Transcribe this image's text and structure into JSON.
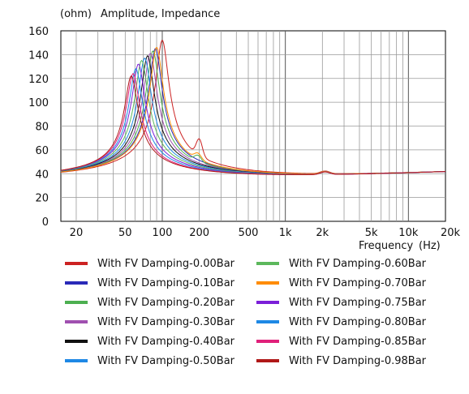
{
  "chart_data": {
    "type": "line",
    "ylabel": "(ohm)",
    "title": "Amplitude, Impedance",
    "xlabel": "Frequency",
    "xunit": "(Hz)",
    "xscale": "log",
    "xlim": [
      15,
      20000
    ],
    "ylim": [
      0,
      160
    ],
    "grid": true,
    "legend_placement": "bottom",
    "y_ticks": [
      "0",
      "20",
      "40",
      "60",
      "80",
      "100",
      "120",
      "140",
      "160"
    ],
    "x_tick_values": [
      20,
      50,
      100,
      200,
      500,
      1000,
      2000,
      5000,
      10000,
      20000
    ],
    "x_tick_labels": [
      "20",
      "50",
      "100",
      "200",
      "500",
      "1k",
      "2k",
      "5k",
      "10k",
      "20k"
    ],
    "series": [
      {
        "name": "With FV Damping-0.00Bar",
        "color": "#cc2222",
        "fs": 100,
        "peak": 152
      },
      {
        "name": "With FV Damping-0.10Bar",
        "color": "#2a2ab8",
        "fs": 88,
        "peak": 145
      },
      {
        "name": "With FV Damping-0.20Bar",
        "color": "#4caf50",
        "fs": 84,
        "peak": 143
      },
      {
        "name": "With FV Damping-0.30Bar",
        "color": "#a050b0",
        "fs": 80,
        "peak": 141
      },
      {
        "name": "With FV Damping-0.40Bar",
        "color": "#111111",
        "fs": 76,
        "peak": 139
      },
      {
        "name": "With FV Damping-0.50Bar",
        "color": "#1e88e5",
        "fs": 72,
        "peak": 137
      },
      {
        "name": "With FV Damping-0.60Bar",
        "color": "#5cb85c",
        "fs": 68,
        "peak": 135
      },
      {
        "name": "With FV Damping-0.70Bar",
        "color": "#ff8c00",
        "fs": 90,
        "peak": 146
      },
      {
        "name": "With FV Damping-0.75Bar",
        "color": "#7b1fd8",
        "fs": 64,
        "peak": 132
      },
      {
        "name": "With FV Damping-0.80Bar",
        "color": "#1e88e5",
        "fs": 61,
        "peak": 128
      },
      {
        "name": "With FV Damping-0.85Bar",
        "color": "#e0207a",
        "fs": 58,
        "peak": 124
      },
      {
        "name": "With FV Damping-0.98Bar",
        "color": "#b01818",
        "fs": 56,
        "peak": 122
      }
    ]
  }
}
